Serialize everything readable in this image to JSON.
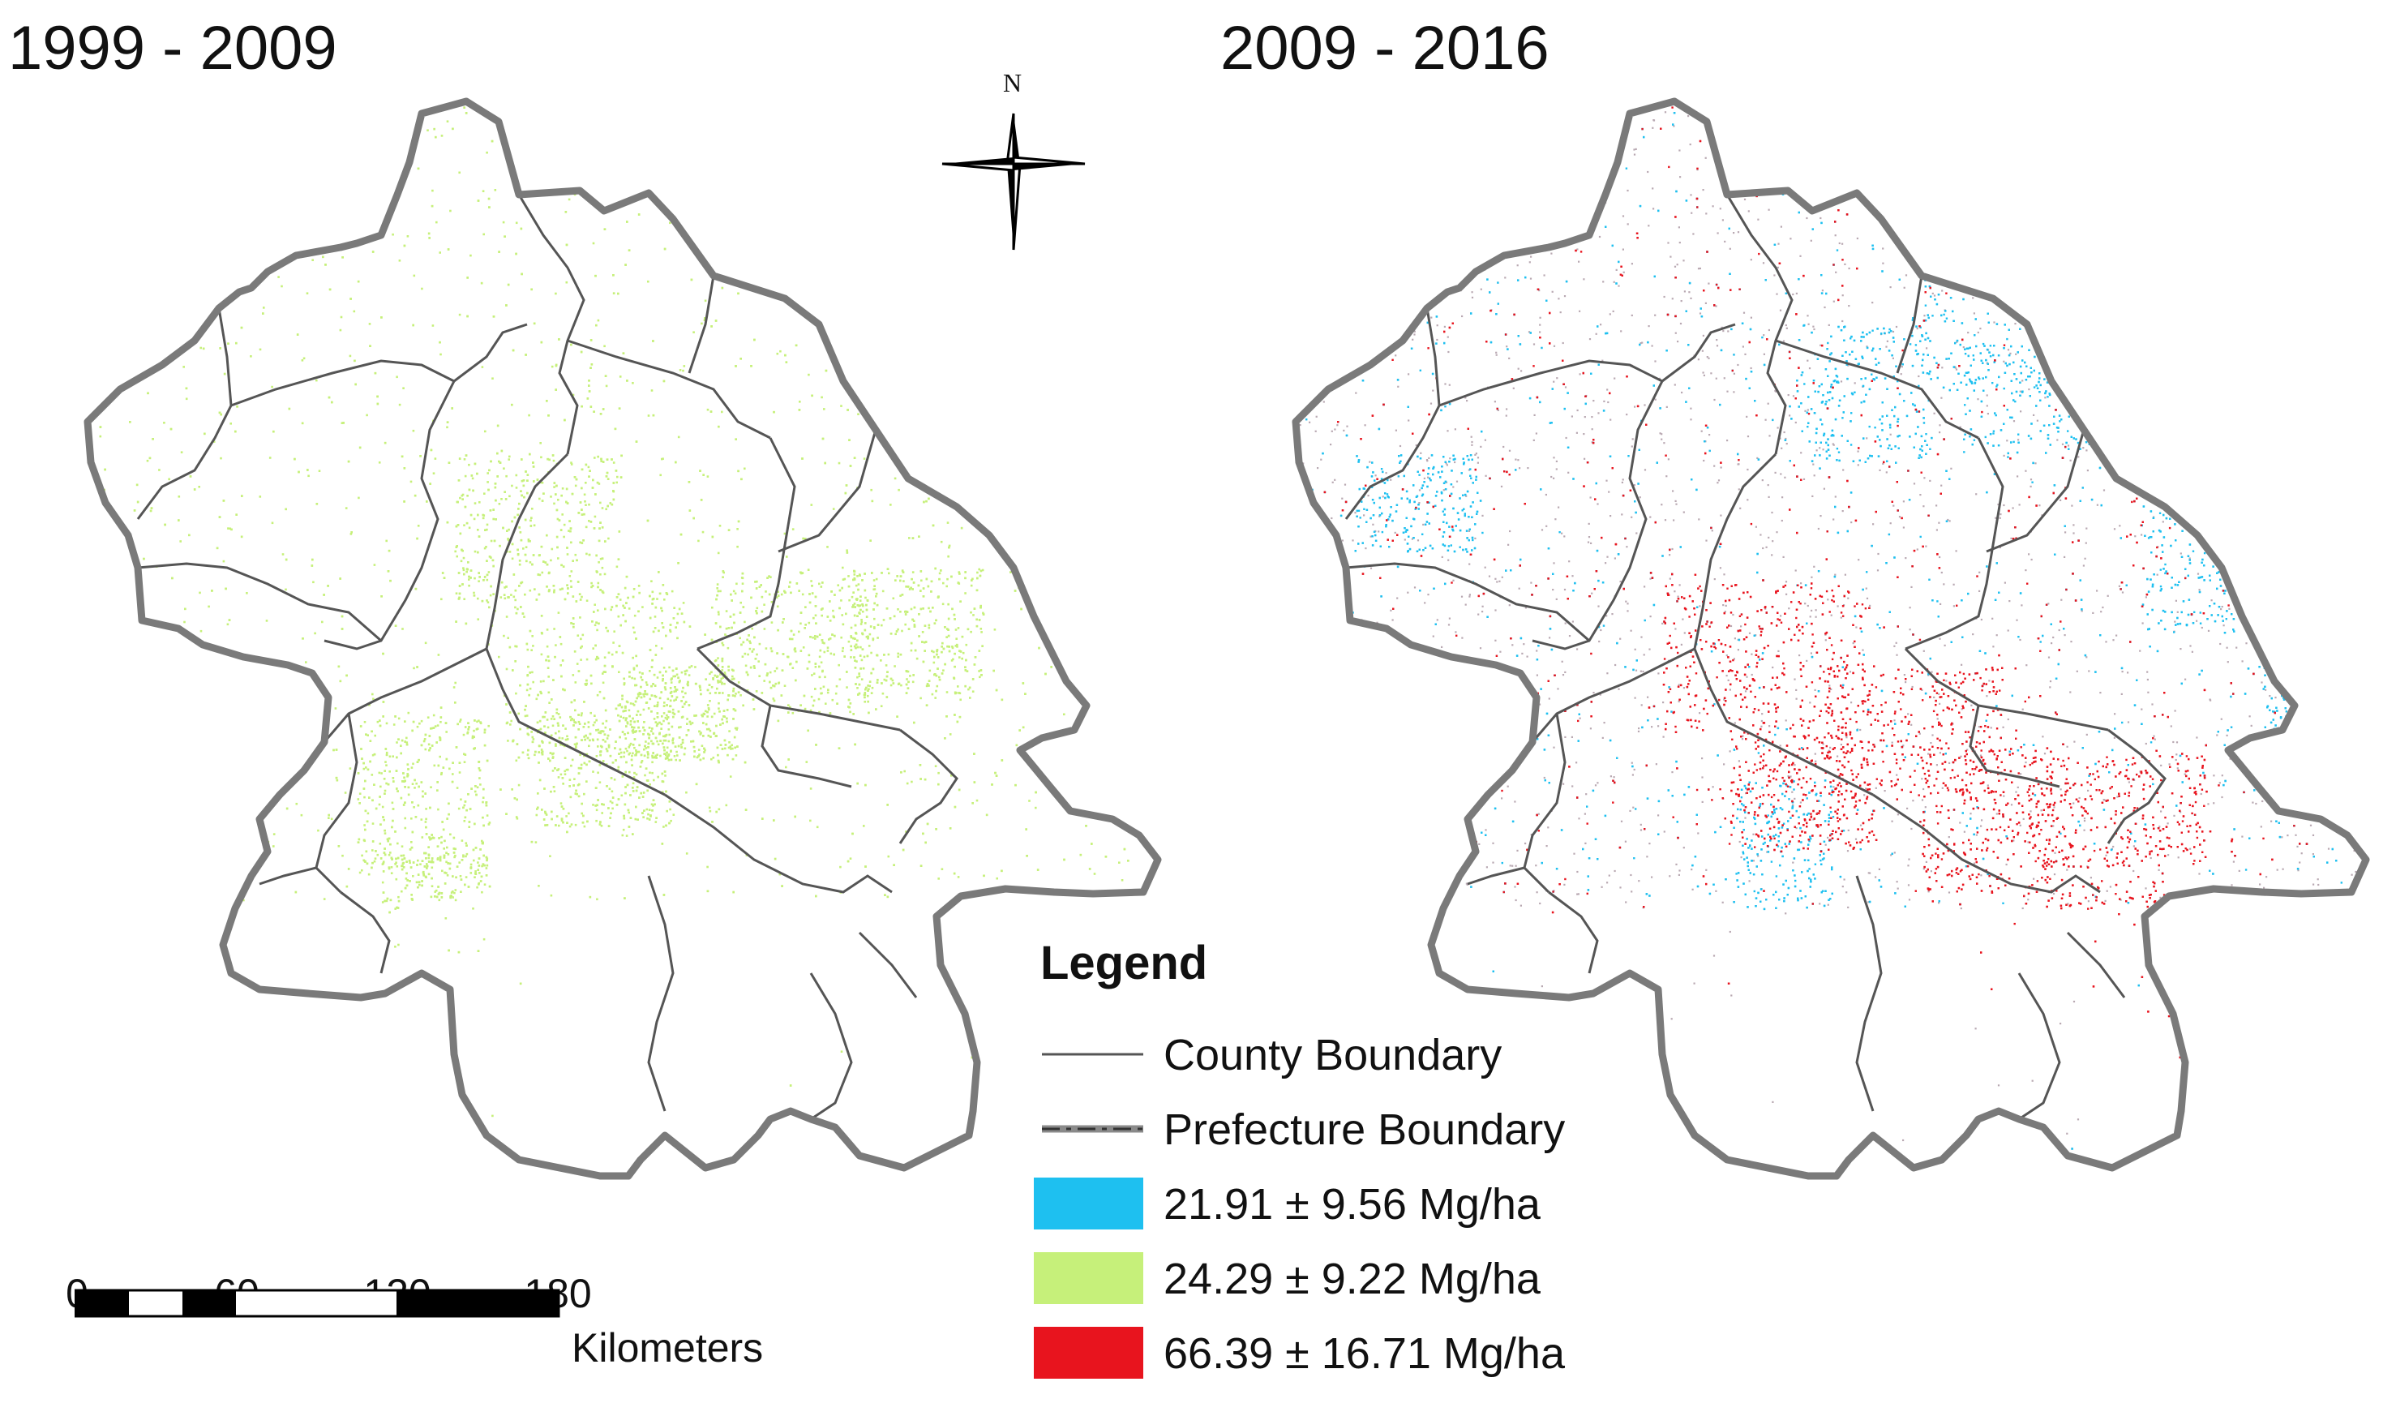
{
  "panels": [
    {
      "title": "1999 - 2009"
    },
    {
      "title": "2009 - 2016"
    }
  ],
  "north_arrow": {
    "label": "N",
    "icon": "compass-rose-icon"
  },
  "legend": {
    "title": "Legend",
    "items": [
      {
        "label": "County Boundary",
        "kind": "line",
        "color": "#555555"
      },
      {
        "label": "Prefecture Boundary",
        "kind": "dashed-line",
        "color": "#555555"
      },
      {
        "label": "21.91 ± 9.56 Mg/ha",
        "kind": "fill",
        "color": "#1ec0f0"
      },
      {
        "label": "24.29 ± 9.22 Mg/ha",
        "kind": "fill",
        "color": "#c6f07a"
      },
      {
        "label": "66.39 ± 16.71 Mg/ha",
        "kind": "fill",
        "color": "#e8141e"
      }
    ]
  },
  "scale_bar": {
    "ticks": [
      "0",
      "60",
      "120",
      "180"
    ],
    "unit": "Kilometers"
  },
  "colors": {
    "boundary_outer": "#7a7a7a",
    "boundary_county": "#555555",
    "loss": "#1ec0f0",
    "stable": "#c6f07a",
    "gain": "#e8141e"
  }
}
